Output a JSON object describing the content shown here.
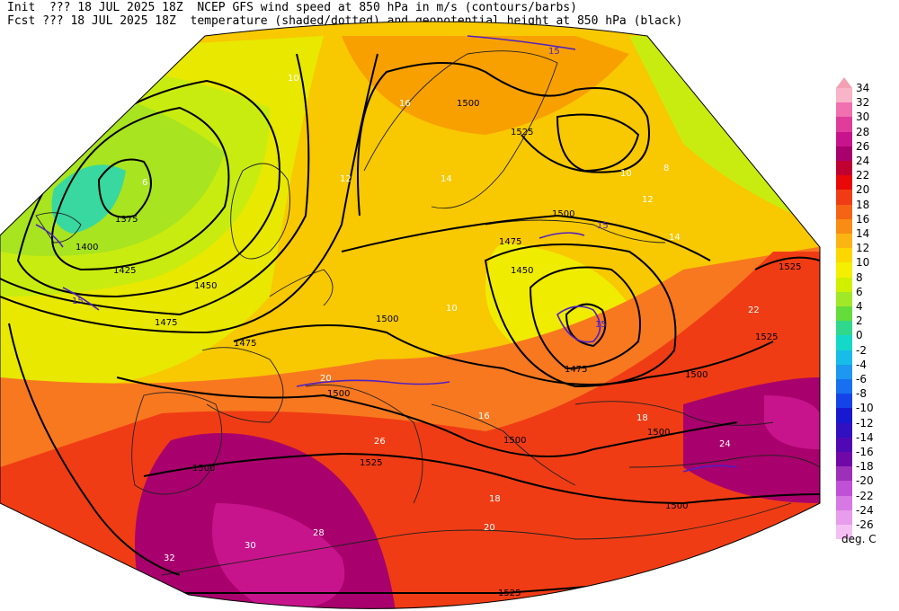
{
  "header": {
    "line1": "Init  ??? 18 JUL 2025 18Z  NCEP GFS wind speed at 850 hPa in m/s (contours/barbs)",
    "line2": "Fcst ??? 18 JUL 2025 18Z  temperature (shaded/dotted) and geopotential height at 850 hPa (black)"
  },
  "colorbar": {
    "units": "deg. C",
    "levels": [
      {
        "label": "34",
        "color": "#f8b4c8"
      },
      {
        "label": "32",
        "color": "#f070b0"
      },
      {
        "label": "30",
        "color": "#e03c9c"
      },
      {
        "label": "28",
        "color": "#c8148c"
      },
      {
        "label": "26",
        "color": "#a8006c"
      },
      {
        "label": "24",
        "color": "#c00030"
      },
      {
        "label": "22",
        "color": "#e80808"
      },
      {
        "label": "20",
        "color": "#f03c14"
      },
      {
        "label": "18",
        "color": "#f46414"
      },
      {
        "label": "16",
        "color": "#f88c14"
      },
      {
        "label": "14",
        "color": "#fcb414"
      },
      {
        "label": "12",
        "color": "#fcd800"
      },
      {
        "label": "10",
        "color": "#f4f000"
      },
      {
        "label": "8",
        "color": "#d0f000"
      },
      {
        "label": "6",
        "color": "#a0e828"
      },
      {
        "label": "4",
        "color": "#64dc3c"
      },
      {
        "label": "2",
        "color": "#30d88c"
      },
      {
        "label": "0",
        "color": "#14d8c8"
      },
      {
        "label": "-2",
        "color": "#18bce8"
      },
      {
        "label": "-4",
        "color": "#1c98f0"
      },
      {
        "label": "-6",
        "color": "#1870f0"
      },
      {
        "label": "-8",
        "color": "#1444e8"
      },
      {
        "label": "-10",
        "color": "#1818d0"
      },
      {
        "label": "-12",
        "color": "#3010c0"
      },
      {
        "label": "-14",
        "color": "#5008b4"
      },
      {
        "label": "-16",
        "color": "#7008a8"
      },
      {
        "label": "-18",
        "color": "#9c30b8"
      },
      {
        "label": "-20",
        "color": "#c050d8"
      },
      {
        "label": "-22",
        "color": "#d878e4"
      },
      {
        "label": "-24",
        "color": "#e89cec"
      },
      {
        "label": "-26",
        "color": "#f4c0f4"
      }
    ]
  },
  "height_labels": [
    "1375",
    "1400",
    "1425",
    "1450",
    "1475",
    "1475",
    "1500",
    "1500",
    "1500",
    "1500",
    "1500",
    "1500",
    "1500",
    "1525",
    "1525",
    "1525",
    "1525",
    "1475",
    "1450",
    "1475",
    "1500",
    "1500",
    "1525"
  ],
  "wind_labels": [
    "15",
    "15",
    "15",
    "15",
    "10",
    "10",
    "10",
    "12",
    "12",
    "14",
    "14",
    "16",
    "16",
    "18",
    "18",
    "20",
    "20",
    "22",
    "24",
    "26",
    "28",
    "30",
    "32",
    "6",
    "8"
  ]
}
